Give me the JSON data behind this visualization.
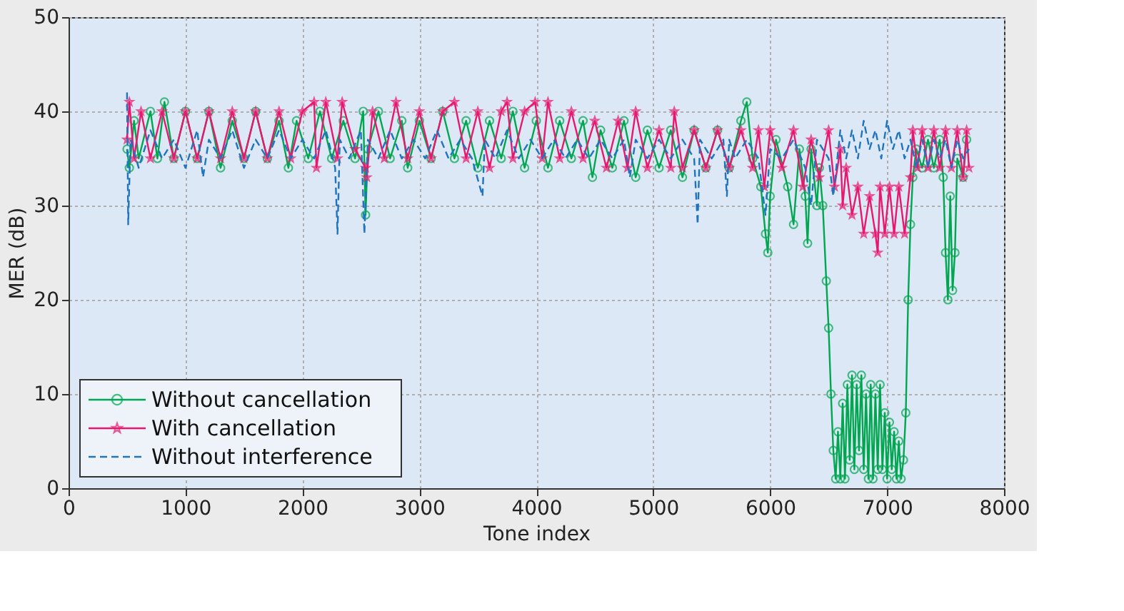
{
  "chart_data": {
    "type": "line",
    "xlabel": "Tone index",
    "ylabel": "MER (dB)",
    "xlim": [
      0,
      8000
    ],
    "ylim": [
      0,
      50
    ],
    "xticks": [
      0,
      1000,
      2000,
      3000,
      4000,
      5000,
      6000,
      7000,
      8000
    ],
    "yticks": [
      0,
      10,
      20,
      30,
      40,
      50
    ],
    "grid": true,
    "legend": "bottom left",
    "series": [
      {
        "name": "Without cancellation",
        "color": "#00a650",
        "marker": "circle",
        "line_style": "solid",
        "x": [
          500,
          520,
          560,
          600,
          700,
          760,
          820,
          900,
          1000,
          1100,
          1200,
          1300,
          1400,
          1500,
          1600,
          1700,
          1800,
          1880,
          1950,
          2050,
          2150,
          2250,
          2350,
          2450,
          2520,
          2540,
          2560,
          2650,
          2750,
          2850,
          2900,
          3000,
          3100,
          3200,
          3300,
          3400,
          3500,
          3600,
          3700,
          3800,
          3900,
          4000,
          4100,
          4200,
          4300,
          4400,
          4480,
          4550,
          4650,
          4750,
          4850,
          4950,
          5050,
          5150,
          5250,
          5350,
          5450,
          5550,
          5650,
          5750,
          5800,
          5850,
          5920,
          5960,
          5980,
          6000,
          6050,
          6150,
          6200,
          6250,
          6300,
          6320,
          6350,
          6400,
          6420,
          6450,
          6480,
          6500,
          6520,
          6540,
          6560,
          6580,
          6600,
          6620,
          6640,
          6660,
          6680,
          6700,
          6720,
          6740,
          6760,
          6780,
          6800,
          6820,
          6840,
          6860,
          6880,
          6900,
          6920,
          6940,
          6960,
          6980,
          7000,
          7020,
          7040,
          7060,
          7080,
          7100,
          7120,
          7140,
          7160,
          7180,
          7200,
          7220,
          7250,
          7300,
          7350,
          7400,
          7450,
          7480,
          7500,
          7520,
          7540,
          7560,
          7580,
          7600,
          7650,
          7680
        ],
        "values": [
          36,
          34,
          39,
          35,
          40,
          35,
          41,
          35,
          40,
          35,
          40,
          34,
          39,
          35,
          40,
          35,
          39,
          34,
          39,
          35,
          40,
          35,
          39,
          35,
          40,
          29,
          36,
          40,
          35,
          39,
          34,
          39,
          35,
          40,
          35,
          39,
          34,
          39,
          35,
          40,
          34,
          39,
          34,
          39,
          35,
          39,
          33,
          38,
          34,
          39,
          33,
          38,
          34,
          38,
          33,
          38,
          34,
          38,
          34,
          39,
          41,
          35,
          32,
          27,
          25,
          31,
          37,
          32,
          28,
          36,
          31,
          26,
          36,
          30,
          34,
          30,
          22,
          17,
          10,
          4,
          1,
          6,
          1,
          9,
          1,
          11,
          3,
          12,
          2,
          11,
          4,
          12,
          2,
          10,
          1,
          11,
          1,
          10,
          2,
          11,
          2,
          8,
          1,
          7,
          2,
          6,
          1,
          5,
          1,
          3,
          8,
          20,
          28,
          33,
          36,
          34,
          37,
          34,
          37,
          33,
          25,
          20,
          31,
          21,
          25,
          35,
          33,
          37
        ]
      },
      {
        "name": "With cancellation",
        "color": "#e8186f",
        "marker": "star",
        "line_style": "solid",
        "x": [
          500,
          520,
          560,
          620,
          700,
          800,
          900,
          1000,
          1100,
          1200,
          1300,
          1400,
          1500,
          1600,
          1700,
          1800,
          1900,
          2000,
          2100,
          2120,
          2200,
          2300,
          2340,
          2450,
          2540,
          2550,
          2600,
          2700,
          2800,
          2900,
          3000,
          3100,
          3200,
          3300,
          3400,
          3500,
          3600,
          3700,
          3750,
          3800,
          3900,
          3990,
          4050,
          4100,
          4200,
          4300,
          4400,
          4500,
          4600,
          4700,
          4780,
          4850,
          4950,
          5050,
          5150,
          5180,
          5250,
          5350,
          5450,
          5550,
          5650,
          5750,
          5850,
          5900,
          5950,
          6000,
          6100,
          6200,
          6280,
          6350,
          6420,
          6500,
          6550,
          6600,
          6620,
          6650,
          6700,
          6750,
          6800,
          6850,
          6900,
          6920,
          6940,
          6980,
          7020,
          7060,
          7100,
          7150,
          7200,
          7220,
          7260,
          7300,
          7350,
          7400,
          7450,
          7500,
          7550,
          7600,
          7650,
          7680,
          7700
        ],
        "values": [
          37,
          41,
          35,
          40,
          35,
          40,
          35,
          40,
          35,
          40,
          35,
          40,
          35,
          40,
          35,
          40,
          35,
          40,
          41,
          34,
          41,
          35,
          41,
          36,
          34,
          33,
          40,
          35,
          41,
          35,
          40,
          35,
          40,
          41,
          35,
          40,
          34,
          40,
          41,
          35,
          40,
          41,
          35,
          41,
          35,
          40,
          35,
          39,
          34,
          39,
          34,
          40,
          34,
          38,
          34,
          40,
          34,
          38,
          34,
          38,
          34,
          38,
          34,
          38,
          32,
          38,
          34,
          38,
          32,
          37,
          33,
          38,
          32,
          36,
          30,
          34,
          29,
          32,
          27,
          31,
          27,
          25,
          32,
          27,
          32,
          27,
          32,
          27,
          33,
          38,
          34,
          38,
          34,
          38,
          34,
          38,
          34,
          38,
          33,
          38,
          34
        ]
      },
      {
        "name": "Without interference",
        "color": "#1f74bd",
        "marker": "none",
        "line_style": "dashed",
        "x": [
          500,
          510,
          530,
          600,
          700,
          800,
          900,
          1000,
          1100,
          1150,
          1200,
          1300,
          1400,
          1500,
          1600,
          1700,
          1800,
          1900,
          2000,
          2100,
          2200,
          2280,
          2300,
          2320,
          2400,
          2500,
          2530,
          2560,
          2650,
          2750,
          2850,
          2950,
          3050,
          3150,
          3250,
          3350,
          3450,
          3540,
          3560,
          3650,
          3750,
          3850,
          3950,
          4050,
          4150,
          4250,
          4350,
          4450,
          4550,
          4650,
          4750,
          4800,
          4850,
          4950,
          5050,
          5150,
          5250,
          5350,
          5380,
          5400,
          5500,
          5600,
          5630,
          5650,
          5700,
          5800,
          5900,
          5960,
          6000,
          6100,
          6200,
          6300,
          6350,
          6400,
          6500,
          6540,
          6600,
          6650,
          6700,
          6750,
          6800,
          6850,
          6900,
          6950,
          7000,
          7050,
          7100,
          7150,
          7200,
          7250,
          7300,
          7350,
          7400,
          7450,
          7500,
          7550,
          7600,
          7650,
          7700
        ],
        "values": [
          42,
          28,
          37,
          34,
          38,
          35,
          37,
          34,
          38,
          33,
          37,
          35,
          38,
          34,
          37,
          35,
          38,
          35,
          37,
          35,
          38,
          34,
          27,
          37,
          35,
          38,
          27,
          37,
          35,
          38,
          35,
          37,
          35,
          38,
          35,
          37,
          35,
          31,
          37,
          35,
          38,
          35,
          37,
          35,
          37,
          35,
          37,
          35,
          37,
          35,
          37,
          33,
          37,
          35,
          37,
          35,
          37,
          35,
          28,
          37,
          35,
          37,
          31,
          37,
          35,
          37,
          35,
          29,
          36,
          35,
          37,
          34,
          30,
          37,
          35,
          31,
          38,
          35,
          38,
          35,
          39,
          36,
          38,
          35,
          39,
          36,
          38,
          35,
          37,
          34,
          37,
          34,
          37,
          35,
          37,
          34,
          37,
          35,
          36
        ]
      }
    ]
  }
}
